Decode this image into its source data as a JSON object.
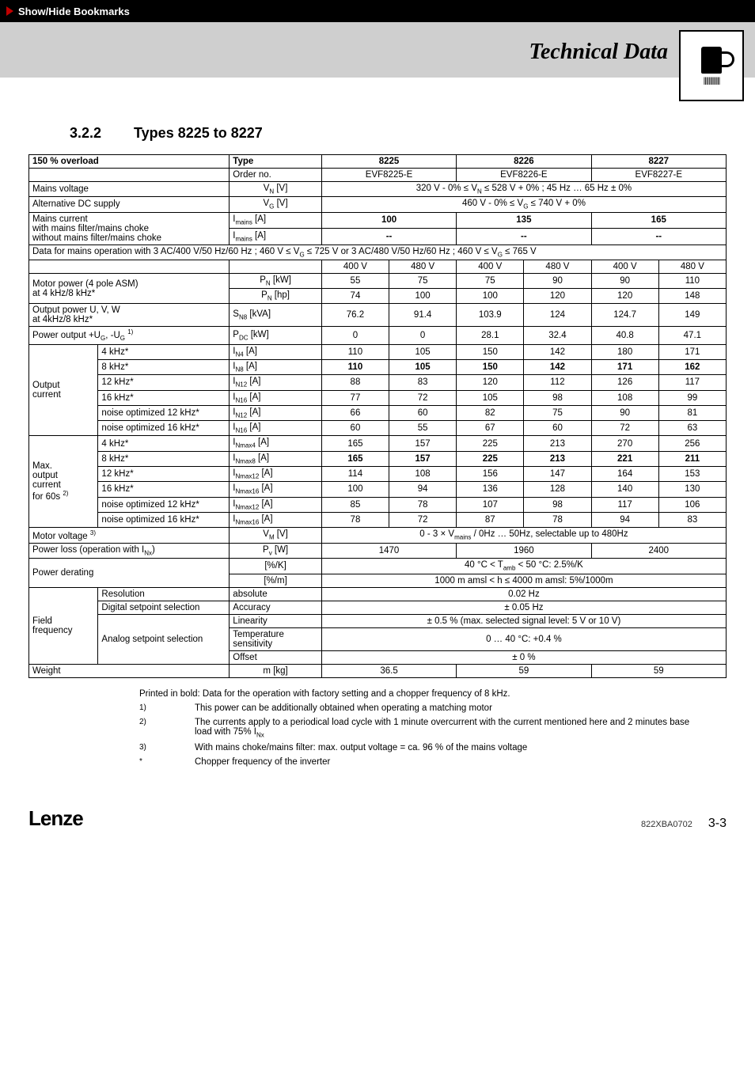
{
  "bookmark_btn": "Show/Hide Bookmarks",
  "doc_title": "Technical Data",
  "section": {
    "num": "3.2.2",
    "title": "Types 8225 to 8227"
  },
  "hdr": {
    "overload": "150 % overload",
    "type": "Type",
    "c1": "8225",
    "c2": "8226",
    "c3": "8227",
    "order": "Order no.",
    "o1": "EVF8225-E",
    "o2": "EVF8226-E",
    "o3": "EVF8227-E"
  },
  "mainsv": {
    "label": "Mains voltage",
    "sym": "V",
    "val": "320 V - 0%  ≤  V",
    "val2": "  ≤ 528 V + 0% ;    45 Hz … 65 Hz  ± 0%"
  },
  "altdc": {
    "label": "Alternative DC supply",
    "sym": "V",
    "val": "460 V - 0%  ≤  V",
    "val2": "  ≤  740 V + 0%"
  },
  "mc": {
    "l1": "Mains current",
    "l2": "with mains filter/mains choke",
    "l3": "without mains filter/mains choke",
    "sym": "I",
    "unit": " [A]",
    "v1": "100",
    "v2": "135",
    "v3": "165",
    "d": "--"
  },
  "note400": {
    "a": "Data for mains operation with 3 AC/400 V/50 Hz/60 Hz ; 460 V  ≤  V",
    "b": "  ≤  725 V or 3 AC/480 V/50 Hz/60 Hz ; 460 V  ≤  V",
    "c": " ≤  765 V"
  },
  "volthdr": {
    "a": "400 V",
    "b": "480 V"
  },
  "mp": {
    "l1": "Motor power (4 pole ASM)",
    "l2": "at 4 kHz/8 kHz*",
    "s1": "P",
    "u1": " [kW]",
    "u2": " [hp]",
    "r1": [
      "55",
      "75",
      "75",
      "90",
      "90",
      "110"
    ],
    "r2": [
      "74",
      "100",
      "100",
      "120",
      "120",
      "148"
    ]
  },
  "op": {
    "l1": "Output power U, V, W",
    "l2": "at 4kHz/8 kHz*",
    "s": "S",
    "u": " [kVA]",
    "r": [
      "76.2",
      "91.4",
      "103.9",
      "124",
      "124.7",
      "149"
    ]
  },
  "pdc": {
    "l": "Power output +U",
    "l2": ", -U",
    "s": "P",
    "u": " [kW]",
    "r": [
      "0",
      "0",
      "28.1",
      "32.4",
      "40.8",
      "47.1"
    ]
  },
  "out": {
    "grp": "Output current",
    "rows": [
      {
        "l": "4 kHz*",
        "s": "N4",
        "r": [
          "110",
          "105",
          "150",
          "142",
          "180",
          "171"
        ],
        "b": false
      },
      {
        "l": "8 kHz*",
        "s": "N8",
        "r": [
          "110",
          "105",
          "150",
          "142",
          "171",
          "162"
        ],
        "b": true
      },
      {
        "l": "12 kHz*",
        "s": "N12",
        "r": [
          "88",
          "83",
          "120",
          "112",
          "126",
          "117"
        ],
        "b": false
      },
      {
        "l": "16 kHz*",
        "s": "N16",
        "r": [
          "77",
          "72",
          "105",
          "98",
          "108",
          "99"
        ],
        "b": false
      },
      {
        "l": "noise optimized 12 kHz*",
        "s": "N12",
        "r": [
          "66",
          "60",
          "82",
          "75",
          "90",
          "81"
        ],
        "b": false
      },
      {
        "l": "noise optimized 16 kHz*",
        "s": "N16",
        "r": [
          "60",
          "55",
          "67",
          "60",
          "72",
          "63"
        ],
        "b": false
      }
    ]
  },
  "max": {
    "grp1": "Max.",
    "grp2": "output",
    "grp3": "current",
    "grp4": "for 60s ",
    "rows": [
      {
        "l": "4 kHz*",
        "s": "Nmax4",
        "r": [
          "165",
          "157",
          "225",
          "213",
          "270",
          "256"
        ],
        "b": false
      },
      {
        "l": "8 kHz*",
        "s": "Nmax8",
        "r": [
          "165",
          "157",
          "225",
          "213",
          "221",
          "211"
        ],
        "b": true
      },
      {
        "l": "12 kHz*",
        "s": "Nmax12",
        "r": [
          "114",
          "108",
          "156",
          "147",
          "164",
          "153"
        ],
        "b": false
      },
      {
        "l": "16 kHz*",
        "s": "Nmax16",
        "r": [
          "100",
          "94",
          "136",
          "128",
          "140",
          "130"
        ],
        "b": false
      },
      {
        "l": "noise optimized 12 kHz*",
        "s": "Nmax12",
        "r": [
          "85",
          "78",
          "107",
          "98",
          "117",
          "106"
        ],
        "b": false
      },
      {
        "l": "noise optimized 16 kHz*",
        "s": "Nmax16",
        "r": [
          "78",
          "72",
          "87",
          "78",
          "94",
          "83"
        ],
        "b": false
      }
    ]
  },
  "mv": {
    "l": "Motor voltage ",
    "s": "V",
    "val": "0 - 3  × V",
    "val2": " / 0Hz … 50Hz, selectable up to 480Hz"
  },
  "pl": {
    "l": "Power loss (operation with I",
    "s": "P",
    "u": " [W]",
    "r": [
      "1470",
      "1960",
      "2400"
    ]
  },
  "pd": {
    "l": "Power derating",
    "u1": "[%/K]",
    "u2": "[%/m]",
    "v1": "40 °C < T",
    "v1b": " < 50 °C: 2.5%/K",
    "v2": "1000 m amsl  <  h  ≤  4000 m amsl: 5%/1000m"
  },
  "ff": {
    "grp": "Field frequency",
    "r1l": "Resolution",
    "r1s": "absolute",
    "r1v": "0.02 Hz",
    "r2l": "Digital setpoint selection",
    "r2s": "Accuracy",
    "r2v": "± 0.05 Hz",
    "r3l": "Analog setpoint selection",
    "r3s": "Linearity",
    "r3v": "± 0.5 % (max. selected signal level: 5 V or  10 V)",
    "r4s": "Temperature sensitivity",
    "r4v": "0 … 40 °C: +0.4 %",
    "r5s": "Offset",
    "r5v": "± 0 %"
  },
  "wt": {
    "l": "Weight",
    "s": "m [kg]",
    "r": [
      "36.5",
      "59",
      "59"
    ]
  },
  "notes": {
    "intro": "Printed in bold: Data for the operation with factory setting and a chopper frequency of 8 kHz.",
    "f1": "This power can be additionally obtained when operating a matching motor",
    "f2a": "The currents apply to a periodical load cycle with 1 minute overcurrent  with the current mentioned here and 2 minutes base load with 75% I",
    "f3": "With mains choke/mains filter: max. output voltage = ca. 96 % of the mains voltage",
    "fs": "Chopper frequency of the inverter"
  },
  "footer": {
    "brand": "Lenze",
    "code": "822XBA0702",
    "page": "3-3"
  }
}
